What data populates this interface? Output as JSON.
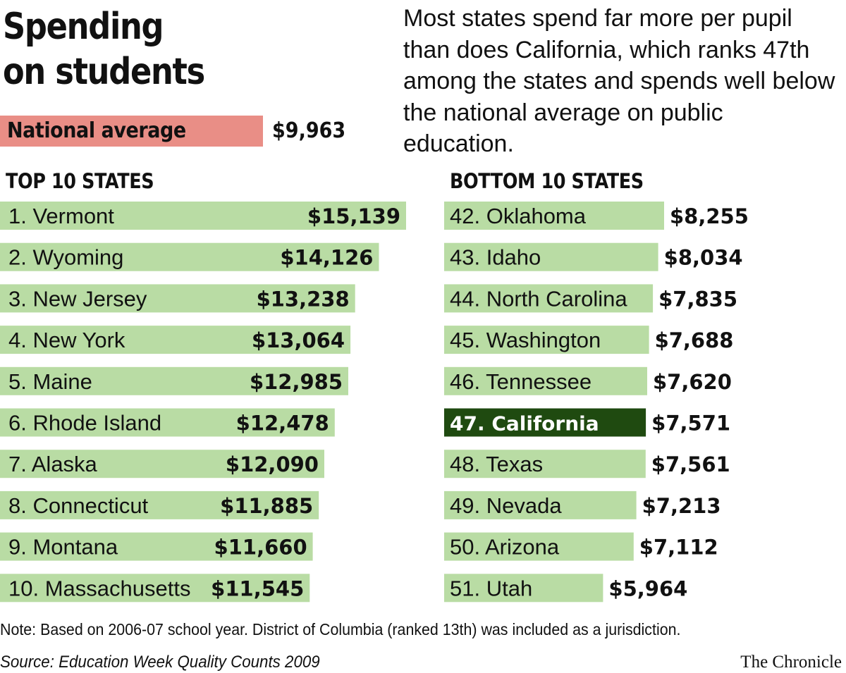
{
  "chart_data": {
    "type": "bar",
    "title": "Spending on students",
    "title_lines": [
      "Spending",
      "on students"
    ],
    "description": "Most states spend far more per pupil than does California, which ranks 47th among the states and spends well below the national average on public education.",
    "national_average": {
      "label": "National average",
      "value": 9963,
      "display": "$9,963"
    },
    "panels": [
      {
        "heading": "TOP 10 STATES",
        "categories": [
          "1. Vermont",
          "2. Wyoming",
          "3. New Jersey",
          "4. New York",
          "5. Maine",
          "6. Rhode Island",
          "7. Alaska",
          "8. Connecticut",
          "9. Montana",
          "10. Massachusetts"
        ],
        "values": [
          15139,
          14126,
          13238,
          13064,
          12985,
          12478,
          12090,
          11885,
          11660,
          11545
        ],
        "display_values": [
          "$15,139",
          "$14,126",
          "$13,238",
          "$13,064",
          "$12,985",
          "$12,478",
          "$12,090",
          "$11,885",
          "$11,660",
          "$11,545"
        ]
      },
      {
        "heading": "BOTTOM 10 STATES",
        "categories": [
          "42. Oklahoma",
          "43. Idaho",
          "44. North Carolina",
          "45. Washington",
          "46. Tennessee",
          "47. California",
          "48. Texas",
          "49. Nevada",
          "50. Arizona",
          "51. Utah"
        ],
        "values": [
          8255,
          8034,
          7835,
          7688,
          7620,
          7571,
          7561,
          7213,
          7112,
          5964
        ],
        "display_values": [
          "$8,255",
          "$8,034",
          "$7,835",
          "$7,688",
          "$7,620",
          "$7,571",
          "$7,561",
          "$7,213",
          "$7,112",
          "$5,964"
        ],
        "highlight": "47. California"
      }
    ],
    "note": "Note: Based on 2006-07 school year. District of Columbia (ranked 13th) was included as a jurisdiction.",
    "source": "Source: Education Week Quality Counts 2009",
    "credit": "The Chronicle",
    "colors": {
      "bar": "#b9dca4",
      "highlight_bar": "#1f4a10",
      "highlight_text": "#ffffff",
      "average_bar": "#e98e86",
      "text": "#111111"
    }
  }
}
